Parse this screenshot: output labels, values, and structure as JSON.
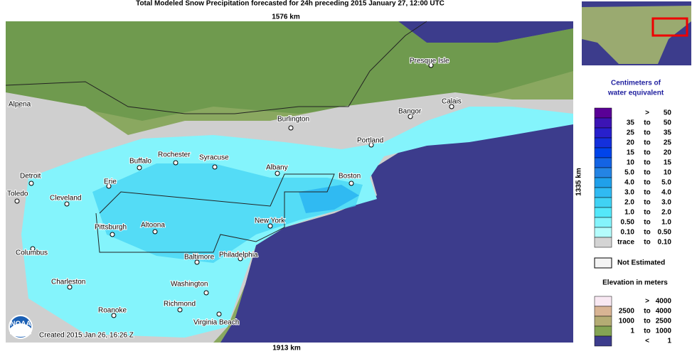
{
  "header": {
    "title": "Total Modeled Snow Precipitation forecasted for 24h preceding 2015 January 27, 12:00 UTC",
    "top_scale": "1576 km",
    "bottom_scale": "1913 km",
    "right_scale": "1335 km"
  },
  "map": {
    "cities": [
      "Alpena",
      "Presque Isle",
      "Calais",
      "Bangor",
      "Burlington",
      "Portland",
      "Rochester",
      "Syracuse",
      "Buffalo",
      "Albany",
      "Boston",
      "Detroit",
      "Erie",
      "Toledo",
      "Cleveland",
      "Pittsburgh",
      "Altoona",
      "New York",
      "Columbus",
      "Baltimore",
      "Philadelphia",
      "Charleston",
      "Washington",
      "Richmond",
      "Roanoke",
      "Virginia Beach"
    ],
    "created": "Created 2015 Jan 26, 16:26 Z",
    "logo": "NOAA"
  },
  "legend": {
    "title_line1": "Centimeters of",
    "title_line2": "water equivalent",
    "rows": [
      {
        "sep": ">",
        "high": "50",
        "color": "#5a0096"
      },
      {
        "low": "35",
        "sep": "to",
        "high": "50",
        "color": "#3c14b4"
      },
      {
        "low": "25",
        "sep": "to",
        "high": "35",
        "color": "#2820cc"
      },
      {
        "low": "20",
        "sep": "to",
        "high": "25",
        "color": "#1430dc"
      },
      {
        "low": "15",
        "sep": "to",
        "high": "20",
        "color": "#0044ea"
      },
      {
        "low": "10",
        "sep": "to",
        "high": "15",
        "color": "#1464e4"
      },
      {
        "low": "5.0",
        "sep": "to",
        "high": "10",
        "color": "#2484e4"
      },
      {
        "low": "4.0",
        "sep": "to",
        "high": "5.0",
        "color": "#20a0ea"
      },
      {
        "low": "3.0",
        "sep": "to",
        "high": "4.0",
        "color": "#30baf2"
      },
      {
        "low": "2.0",
        "sep": "to",
        "high": "3.0",
        "color": "#40d2f4"
      },
      {
        "low": "1.0",
        "sep": "to",
        "high": "2.0",
        "color": "#54e8fa"
      },
      {
        "low": "0.50",
        "sep": "to",
        "high": "1.0",
        "color": "#84f4fc"
      },
      {
        "low": "0.10",
        "sep": "to",
        "high": "0.50",
        "color": "#b4fcfc"
      },
      {
        "low": "trace",
        "sep": "to",
        "high": "0.10",
        "color": "#d4d4d4"
      }
    ],
    "not_estimated": "Not Estimated",
    "elevation_title": "Elevation in meters",
    "elevation_rows": [
      {
        "sep": ">",
        "high": "4000",
        "color": "#f8e8f2"
      },
      {
        "low": "2500",
        "sep": "to",
        "high": "4000",
        "color": "#d8b494"
      },
      {
        "low": "1000",
        "sep": "to",
        "high": "2500",
        "color": "#b4ac74"
      },
      {
        "low": "1",
        "sep": "to",
        "high": "1000",
        "color": "#84a454"
      },
      {
        "sep": "<",
        "high": "1",
        "color": "#3c3c8c"
      }
    ]
  }
}
